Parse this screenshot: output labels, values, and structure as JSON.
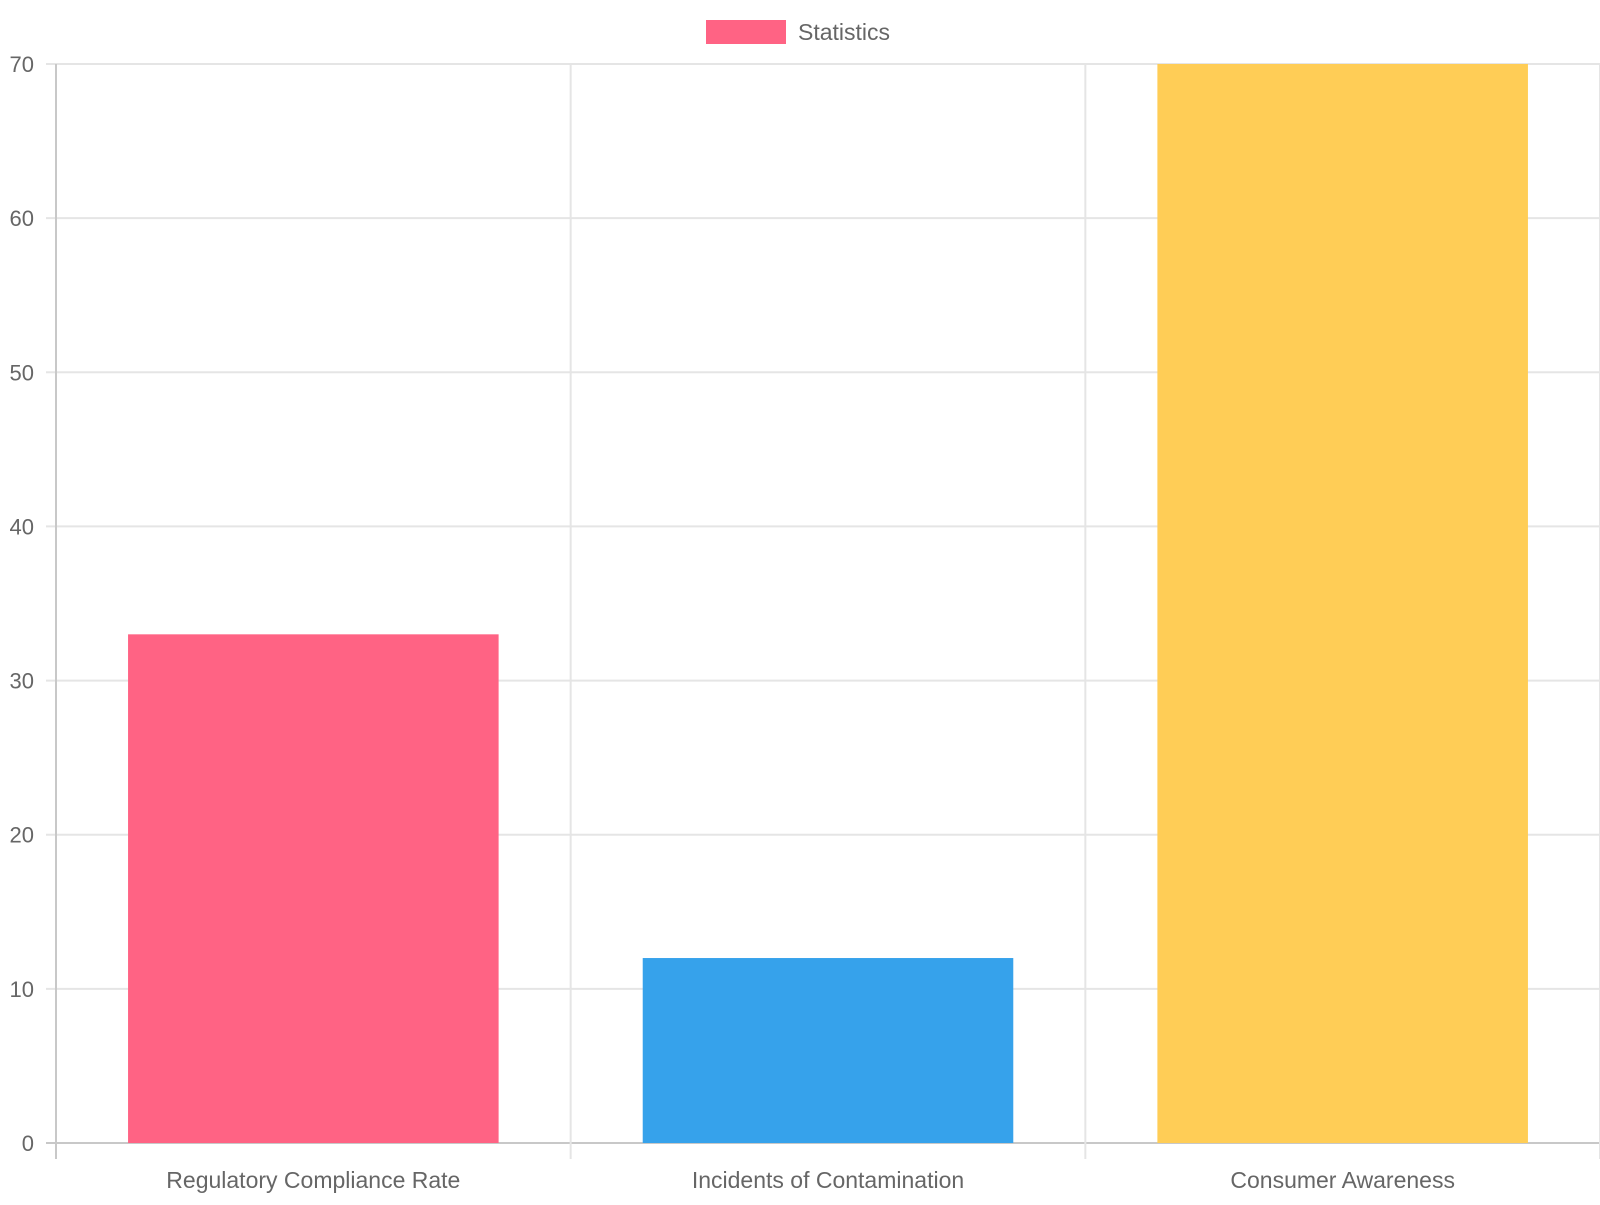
{
  "chart_data": {
    "type": "bar",
    "title": "",
    "xlabel": "",
    "ylabel": "",
    "categories": [
      "Regulatory Compliance Rate",
      "Incidents of Contamination",
      "Consumer Awareness"
    ],
    "series": [
      {
        "name": "Statistics",
        "values": [
          33,
          12,
          70
        ],
        "colors": [
          "#ff6384",
          "#36a2eb",
          "#ffcd56"
        ]
      }
    ],
    "ylim": [
      0,
      70
    ],
    "yticks": [
      "0",
      "10",
      "20",
      "30",
      "40",
      "50",
      "60",
      "70"
    ],
    "grid": true,
    "legend_position": "top",
    "legend_color": "#ff6384",
    "grid_color": "#e5e5e5",
    "text_color": "#666666"
  }
}
